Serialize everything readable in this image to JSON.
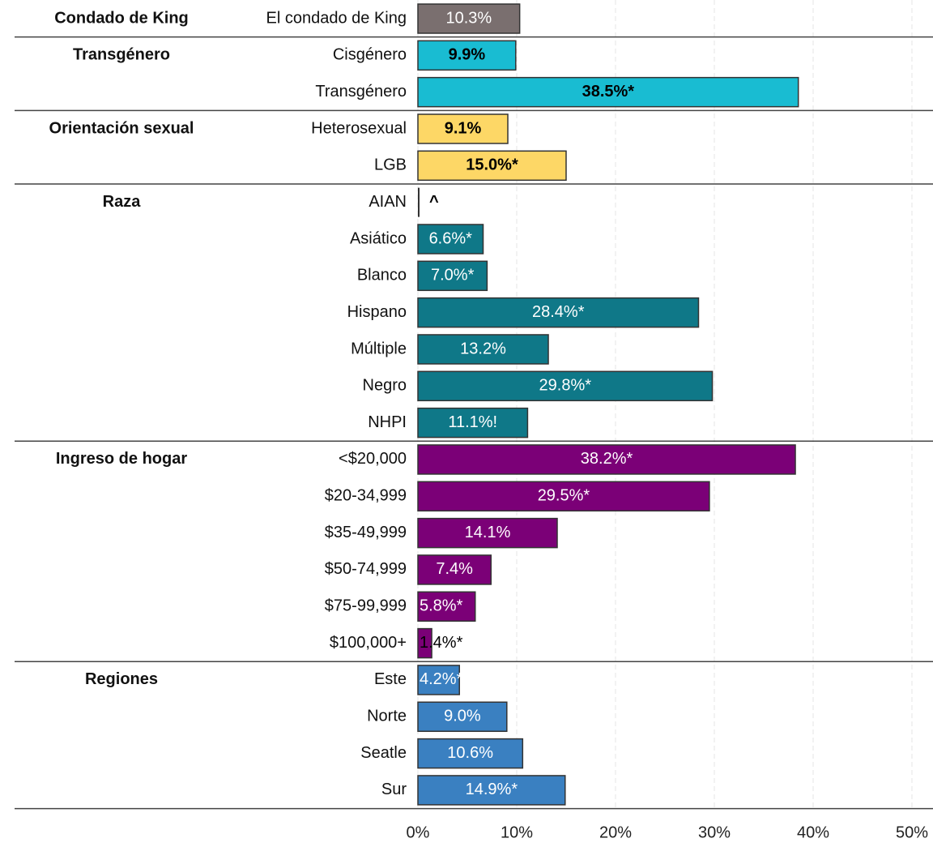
{
  "chart_data": {
    "type": "bar",
    "orientation": "horizontal",
    "xlim": [
      0,
      50
    ],
    "xticks": [
      {
        "value": 0,
        "label": "0%"
      },
      {
        "value": 10,
        "label": "10%"
      },
      {
        "value": 20,
        "label": "20%"
      },
      {
        "value": 30,
        "label": "30%"
      },
      {
        "value": 40,
        "label": "40%"
      },
      {
        "value": 50,
        "label": "50%"
      }
    ],
    "grid": true,
    "groups": [
      {
        "name": "Condado de King",
        "color": "#7a6f6f",
        "label_color": "#ffffff",
        "categories": [
          "El condado de King"
        ],
        "values": [
          10.3
        ],
        "value_labels": [
          "10.3%"
        ]
      },
      {
        "name": "Transgénero",
        "color": "#19bcd2",
        "label_color": "#000000",
        "categories": [
          "Cisgénero",
          "Transgénero"
        ],
        "values": [
          9.9,
          38.5
        ],
        "value_labels": [
          "9.9%",
          "38.5%*"
        ]
      },
      {
        "name": "Orientación sexual",
        "color": "#fdd766",
        "label_color": "#000000",
        "categories": [
          "Heterosexual",
          "LGB"
        ],
        "values": [
          9.1,
          15.0
        ],
        "value_labels": [
          "9.1%",
          "15.0%*"
        ]
      },
      {
        "name": "Raza",
        "color": "#0f7888",
        "label_color": "#ffffff",
        "categories": [
          "AIAN",
          "Asiático",
          "Blanco",
          "Hispano",
          "Múltiple",
          "Negro",
          "NHPI"
        ],
        "values": [
          null,
          6.6,
          7.0,
          28.4,
          13.2,
          29.8,
          11.1
        ],
        "value_labels": [
          "^",
          "6.6%*",
          "7.0%*",
          "28.4%*",
          "13.2%",
          "29.8%*",
          "11.1%!"
        ]
      },
      {
        "name": "Ingreso de hogar",
        "color": "#7b0077",
        "label_color": "#ffffff",
        "categories": [
          "<$20,000",
          "$20-34,999",
          "$35-49,999",
          "$50-74,999",
          "$75-99,999",
          "$100,000+"
        ],
        "values": [
          38.2,
          29.5,
          14.1,
          7.4,
          5.8,
          1.4
        ],
        "value_labels": [
          "38.2%*",
          "29.5%*",
          "14.1%",
          "7.4%",
          "5.8%*",
          "1.4%*"
        ]
      },
      {
        "name": "Regiones",
        "color": "#3a80c1",
        "label_color": "#ffffff",
        "categories": [
          "Este",
          "Norte",
          "Seatle",
          "Sur"
        ],
        "values": [
          4.2,
          9.0,
          10.6,
          14.9
        ],
        "value_labels": [
          "4.2%*",
          "9.0%",
          "10.6%",
          "14.9%*"
        ]
      }
    ]
  }
}
